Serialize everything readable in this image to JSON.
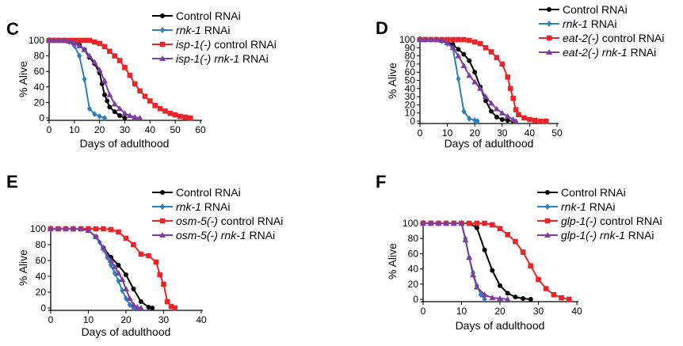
{
  "chart_data": [
    {
      "type": "line",
      "panel": "C",
      "xlabel": "Days of adulthood",
      "ylabel": "% Alive",
      "xlim": [
        0,
        60
      ],
      "ylim": [
        0,
        100
      ],
      "xticks": [
        0,
        10,
        20,
        30,
        40,
        50,
        60
      ],
      "yticks": [
        0,
        20,
        40,
        60,
        80,
        100
      ],
      "legend_position": "top-right",
      "series": [
        {
          "name": "Control RNAi",
          "pre": "",
          "ital": "",
          "post": "Control RNAi",
          "color": "#000000",
          "marker": "circle",
          "x": [
            0,
            2,
            4,
            6,
            8,
            10,
            12,
            14,
            16,
            18,
            20,
            21,
            22,
            23,
            24,
            26,
            28,
            30
          ],
          "y": [
            100,
            100,
            100,
            100,
            99,
            97,
            94,
            88,
            78,
            70,
            58,
            44,
            30,
            22,
            14,
            8,
            3,
            0
          ]
        },
        {
          "name": "rnk-1 RNAi",
          "pre": "",
          "ital": "rnk-1",
          "post": " RNAi",
          "color": "#2b7ec1",
          "marker": "diamond",
          "x": [
            0,
            2,
            4,
            6,
            8,
            10,
            12,
            14,
            16,
            18,
            20,
            22
          ],
          "y": [
            100,
            100,
            100,
            100,
            98,
            93,
            80,
            50,
            12,
            5,
            2,
            0
          ]
        },
        {
          "name": "isp-1(-) control RNAi",
          "pre": "",
          "ital": "isp-1(-)",
          "post": " control RNAi",
          "color": "#e8262a",
          "marker": "square",
          "x": [
            0,
            2,
            4,
            6,
            8,
            10,
            12,
            14,
            16,
            18,
            20,
            22,
            24,
            26,
            28,
            30,
            32,
            34,
            36,
            38,
            40,
            42,
            44,
            46,
            48,
            50,
            52,
            54,
            56
          ],
          "y": [
            100,
            100,
            100,
            100,
            100,
            100,
            100,
            100,
            100,
            98,
            96,
            92,
            86,
            80,
            74,
            65,
            55,
            44,
            35,
            28,
            22,
            16,
            12,
            9,
            6,
            4,
            2,
            1,
            0
          ]
        },
        {
          "name": "isp-1(-) rnk-1 RNAi",
          "pre": "",
          "ital": "isp-1(-) rnk-1",
          "post": " RNAi",
          "color": "#7b3f9e",
          "marker": "triangle",
          "x": [
            0,
            2,
            4,
            6,
            8,
            10,
            12,
            14,
            16,
            18,
            20,
            22,
            24,
            26,
            28,
            30,
            32,
            34,
            36
          ],
          "y": [
            100,
            100,
            100,
            100,
            99,
            97,
            93,
            88,
            80,
            72,
            62,
            48,
            30,
            18,
            12,
            6,
            3,
            1,
            0
          ]
        }
      ]
    },
    {
      "type": "line",
      "panel": "D",
      "xlabel": "Days of adulthood",
      "ylabel": "% Alive",
      "xlim": [
        0,
        50
      ],
      "ylim": [
        0,
        100
      ],
      "xticks": [
        0,
        10,
        20,
        30,
        40,
        50
      ],
      "yticks": [
        0,
        10,
        20,
        30,
        40,
        50,
        60,
        70,
        80,
        90,
        100
      ],
      "legend_position": "top-right",
      "series": [
        {
          "name": "Control RNAi",
          "pre": "",
          "ital": "",
          "post": "Control RNAi",
          "color": "#000000",
          "marker": "circle",
          "x": [
            0,
            2,
            4,
            6,
            8,
            10,
            12,
            14,
            16,
            18,
            20,
            22,
            24,
            26,
            28,
            30,
            32,
            34
          ],
          "y": [
            100,
            100,
            100,
            100,
            99,
            97,
            94,
            88,
            82,
            74,
            60,
            42,
            25,
            12,
            5,
            2,
            1,
            0
          ]
        },
        {
          "name": "rnk-1 RNAi",
          "pre": "",
          "ital": "rnk-1",
          "post": " RNAi",
          "color": "#2b7ec1",
          "marker": "diamond",
          "x": [
            0,
            2,
            4,
            6,
            8,
            10,
            12,
            14,
            16,
            18,
            20,
            21
          ],
          "y": [
            100,
            100,
            100,
            100,
            98,
            95,
            90,
            52,
            12,
            3,
            1,
            0
          ]
        },
        {
          "name": "eat-2(-) control RNAi",
          "pre": "",
          "ital": "eat-2(-)",
          "post": " control RNAi",
          "color": "#e8262a",
          "marker": "square",
          "x": [
            0,
            2,
            4,
            6,
            8,
            10,
            12,
            14,
            16,
            18,
            20,
            22,
            24,
            26,
            28,
            30,
            32,
            33,
            34,
            35,
            36,
            38,
            40,
            42,
            44,
            46
          ],
          "y": [
            100,
            100,
            100,
            100,
            100,
            100,
            100,
            100,
            100,
            99,
            97,
            95,
            90,
            85,
            78,
            70,
            54,
            40,
            28,
            14,
            8,
            4,
            2,
            1,
            0,
            0
          ]
        },
        {
          "name": "eat-2(-) rnk-1 RNAi",
          "pre": "",
          "ital": "eat-2(-) rnk-1",
          "post": " RNAi",
          "color": "#7b3f9e",
          "marker": "triangle",
          "x": [
            0,
            2,
            4,
            6,
            8,
            10,
            12,
            14,
            16,
            18,
            20,
            22,
            24,
            26,
            28,
            30,
            32,
            34,
            35
          ],
          "y": [
            100,
            100,
            100,
            100,
            99,
            96,
            90,
            80,
            68,
            56,
            48,
            40,
            30,
            22,
            15,
            10,
            6,
            2,
            0
          ]
        }
      ]
    },
    {
      "type": "line",
      "panel": "E",
      "xlabel": "Days of adulthood",
      "ylabel": "% Alive",
      "xlim": [
        0,
        40
      ],
      "ylim": [
        0,
        100
      ],
      "xticks": [
        0,
        10,
        20,
        30,
        40
      ],
      "yticks": [
        0,
        20,
        40,
        60,
        80,
        100
      ],
      "legend_position": "top-right",
      "series": [
        {
          "name": "Control RNAi",
          "pre": "",
          "ital": "",
          "post": "Control RNAi",
          "color": "#000000",
          "marker": "circle",
          "x": [
            0,
            2,
            4,
            6,
            8,
            10,
            12,
            14,
            16,
            18,
            20,
            22,
            24,
            26,
            27
          ],
          "y": [
            100,
            100,
            100,
            100,
            100,
            98,
            90,
            76,
            64,
            54,
            42,
            24,
            8,
            1,
            0
          ]
        },
        {
          "name": "rnk-1 RNAi",
          "pre": "",
          "ital": "rnk-1",
          "post": " RNAi",
          "color": "#2b7ec1",
          "marker": "diamond",
          "x": [
            0,
            2,
            4,
            6,
            8,
            10,
            12,
            13,
            14,
            15,
            16,
            17,
            18,
            19,
            20,
            21,
            22
          ],
          "y": [
            100,
            100,
            100,
            100,
            100,
            98,
            90,
            83,
            74,
            64,
            54,
            44,
            34,
            22,
            12,
            4,
            0
          ]
        },
        {
          "name": "osm-5(-) control RNAi",
          "pre": "",
          "ital": "osm-5(-)",
          "post": " control RNAi",
          "color": "#e8262a",
          "marker": "square",
          "x": [
            0,
            2,
            4,
            6,
            8,
            10,
            12,
            14,
            16,
            18,
            20,
            22,
            24,
            26,
            28,
            29,
            30,
            31,
            32,
            33
          ],
          "y": [
            100,
            100,
            100,
            100,
            100,
            100,
            100,
            100,
            99,
            96,
            88,
            80,
            68,
            66,
            58,
            42,
            30,
            8,
            2,
            0
          ]
        },
        {
          "name": "osm-5(-) rnk-1 RNAi",
          "pre": "",
          "ital": "osm-5(-) rnk-1",
          "post": " RNAi",
          "color": "#7b3f9e",
          "marker": "triangle",
          "x": [
            0,
            2,
            4,
            6,
            8,
            10,
            12,
            14,
            16,
            17,
            18,
            19,
            20,
            21,
            22,
            23,
            24
          ],
          "y": [
            100,
            100,
            100,
            100,
            100,
            98,
            90,
            76,
            60,
            52,
            44,
            36,
            24,
            12,
            4,
            1,
            0
          ]
        }
      ]
    },
    {
      "type": "line",
      "panel": "F",
      "xlabel": "Days of adulthood",
      "ylabel": "% Alive",
      "xlim": [
        0,
        40
      ],
      "ylim": [
        0,
        100
      ],
      "xticks": [
        0,
        10,
        20,
        30,
        40
      ],
      "yticks": [
        0,
        20,
        40,
        60,
        80,
        100
      ],
      "legend_position": "top-right",
      "series": [
        {
          "name": "Control RNAi",
          "pre": "",
          "ital": "",
          "post": "Control RNAi",
          "color": "#000000",
          "marker": "circle",
          "x": [
            0,
            2,
            4,
            6,
            8,
            10,
            12,
            14,
            16,
            18,
            20,
            22,
            24,
            26,
            28
          ],
          "y": [
            100,
            100,
            100,
            100,
            100,
            100,
            100,
            94,
            65,
            38,
            18,
            8,
            3,
            1,
            0
          ]
        },
        {
          "name": "rnk-1 RNAi",
          "pre": "",
          "ital": "rnk-1",
          "post": " RNAi",
          "color": "#2b7ec1",
          "marker": "diamond",
          "x": [
            0,
            2,
            4,
            6,
            8,
            10,
            11,
            12,
            13,
            14,
            15,
            16
          ],
          "y": [
            100,
            100,
            100,
            100,
            100,
            100,
            80,
            55,
            35,
            18,
            6,
            0
          ]
        },
        {
          "name": "glp-1(-) control RNAi",
          "pre": "",
          "ital": "glp-1(-)",
          "post": " control RNAi",
          "color": "#e8262a",
          "marker": "square",
          "x": [
            0,
            2,
            4,
            6,
            8,
            10,
            12,
            14,
            16,
            18,
            20,
            22,
            24,
            26,
            28,
            30,
            32,
            34,
            36,
            38
          ],
          "y": [
            100,
            100,
            100,
            100,
            100,
            100,
            100,
            100,
            100,
            98,
            93,
            85,
            76,
            62,
            44,
            26,
            14,
            6,
            2,
            0
          ]
        },
        {
          "name": "glp-1(-) rnk-1 RNAi",
          "pre": "",
          "ital": "glp-1(-) rnk-1",
          "post": " RNAi",
          "color": "#7b3f9e",
          "marker": "triangle",
          "x": [
            0,
            2,
            4,
            6,
            8,
            10,
            11,
            12,
            13,
            14,
            16,
            18,
            20,
            22
          ],
          "y": [
            100,
            100,
            100,
            100,
            100,
            100,
            78,
            55,
            32,
            16,
            6,
            2,
            1,
            0
          ]
        }
      ]
    }
  ]
}
